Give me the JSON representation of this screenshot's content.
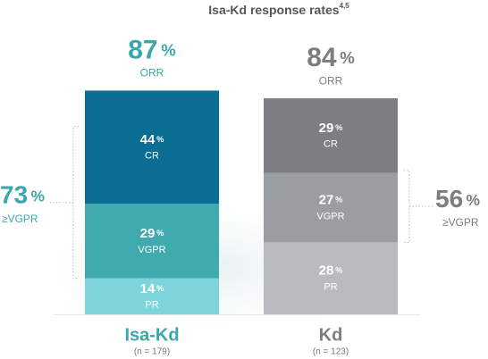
{
  "chart_data": {
    "type": "stacked-bar",
    "title": "Isa-Kd response rates",
    "title_superscript": "4,5",
    "unit": "%",
    "categories": [
      "Isa-Kd",
      "Kd"
    ],
    "category_notes": [
      "(n = 179)",
      "(n = 123)"
    ],
    "category_colors": [
      "#3aa8ab",
      "#7b7d80"
    ],
    "series": [
      {
        "name": "PR",
        "colors": [
          "#7dd5db",
          "#b9bcbf"
        ],
        "values": [
          14,
          28
        ]
      },
      {
        "name": "VGPR",
        "colors": [
          "#3fabae",
          "#9b9ea1"
        ],
        "values": [
          29,
          27
        ]
      },
      {
        "name": "CR",
        "colors": [
          "#096d94",
          "#7d7e81"
        ],
        "values": [
          44,
          29
        ]
      }
    ],
    "total_label": "ORR",
    "totals": [
      87,
      84
    ],
    "vgpr_label": "≥VGPR",
    "vgpr_or_better": [
      73,
      56
    ]
  }
}
